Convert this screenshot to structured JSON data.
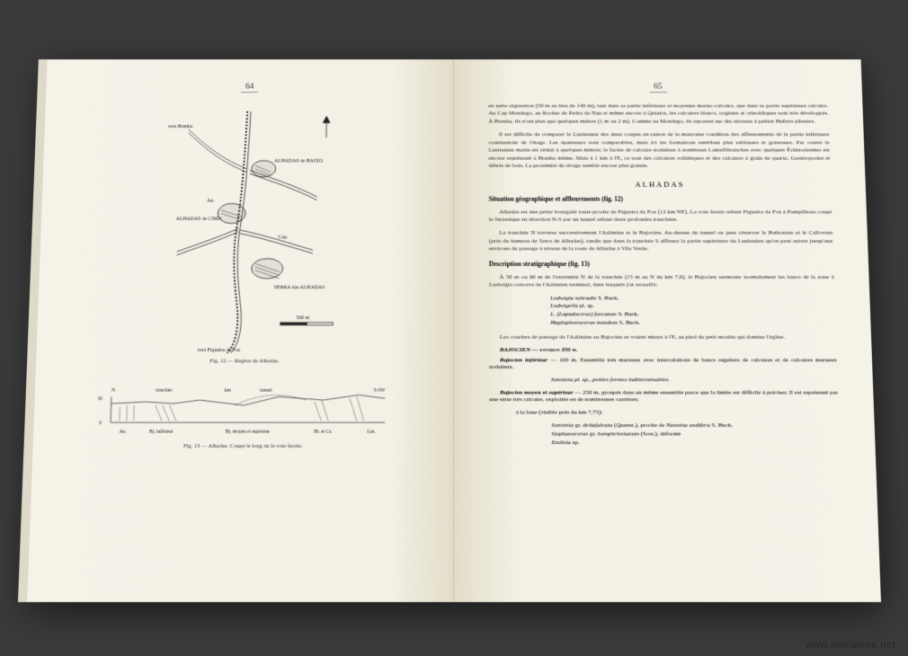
{
  "left": {
    "page_num": "64",
    "map": {
      "labels": {
        "brenha": "vers Brenha",
        "baixo": "ALHADAS de BAIXO",
        "cima": "ALHADAS de CIMA",
        "serra": "SERRA das ALHADAS",
        "figueira": "vers Figueira da Foz",
        "an": "An.",
        "cap": "Cap."
      },
      "scale": "500 m",
      "caption": "Fig. 12 — Région de Alhadas."
    },
    "section": {
      "labels": {
        "n": "N",
        "sw": "S-SW",
        "tranchee": "tranchée",
        "tunnel": "tunnel",
        "km": "km",
        "an": "An.",
        "bj_inf": "Bj. inférieur",
        "bj_moy": "Bj. moyen et supérieur",
        "bt_ca": "Bt. et Ca.",
        "lus": "Lus.",
        "v50": "50",
        "v0": "0"
      },
      "caption": "Fig. 13 — Alhadas. Coupe le long de la voie ferrée."
    }
  },
  "right": {
    "page_num": "65",
    "para1": "en nette régression (50 m au lieu de 140 m), tant dans sa partie inférieure et moyenne marno-calcaire, que dans sa partie supérieure calcaire. Au Cap Mondego, au Rocher de Pedra da Nau et même encore à Quiaios, les calcaires blancs, oogènes et crinoïdiques sont très développés. À Brenha, ils n'ont plus que quelques mètres (1 m ou 2 m). Comme au Mondego, ils reposent sur des niveaux à petites Huîtres plissées.",
    "para2": "Il est difficile de comparer le Lusitanien des deux coupes en raison de la mauvaise condition des affleurements de la partie inférieure continentale de l'étage. Les épaisseurs sont comparables, mais ici les formations semblent plus sableuses et gréseuses. Par contre le Lusitanien marin est réduit à quelques mètres; le faciès de calcaire noduleux à nombreux Lamellibranches avec quelques Échinodermes est encore représenté à Brenha même. Mais à 1 km à l'E, ce sont des calcaires oolithiques et des calcaires à grain de quartz, Gastéropodes et débris de bois. La proximité du rivage semble encore plus grande.",
    "section_title": "ALHADAS",
    "sub1": "Situation géographique et affleurements (fig. 12)",
    "para3": "Alhadas est une petite bourgade toute proche de Figueira da Foz (12 km NE). La voie ferrée reliant Figueira da Foz à Pampilhosa coupe le Jurassique en direction N-S par un tunnel reliant deux profondes tranchées.",
    "para4": "La tranchée N traverse successivement l'Aalénien et le Bajocien. Au-dessus du tunnel on peut observer le Bathonien et le Callovien (près du hameau de Serra de Alhadas), tandis que dans la tranchée S affleure la partie supérieure du Lusitanien qu'on peut suivre jusqu'aux environs du passage à niveau de la route de Alhadas à Vila Verde.",
    "sub2": "Description stratigraphique (fig. 13)",
    "para5": "À 50 m ou 60 m de l'extrémité N de la tranchée (15 m au N du km 7,9), le Bajocien surmonte normalement les bancs de la zone à Ludwigia concava de l'Aalénien terminal, dans lesquels j'ai recueilli:",
    "species1": [
      "Ludwigia subradix <span class=\"auth\">S. Buck.</span>",
      "Ludwigella <span class=\"auth\">pl. sp.</span>",
      "L. (Lopadoceras) furcatum <span class=\"auth\">S. Buck.</span>",
      "Haplopleuroceras mundum <span class=\"auth\">S. Buck.</span>"
    ],
    "para6": "Les couches de passage de l'Aalénien au Bajocien se voient mieux à l'E, au pied du petit moulin qui domine l'église.",
    "baj_head": "BAJOCIEN — environ 350 m.",
    "baj_inf": "Bajocien inférieur — 100 m. Ensemble très marneux avec intercalations de bancs réguliers de calcaires et de calcaires marneux noduleux.",
    "baj_inf_sp": "Sonninia pl. sp., petites formes indéterminables.",
    "baj_moy": "Bajocien moyen et supérieur — 250 m, groupés dans un même ensemble parce que la limite est difficile à préciser. Il est représenté par une série très calcaire, exploitée en de nombreuses carrières;",
    "baj_base": "à la base (visible près du km 7,75):",
    "species2": [
      "Sonninia <span class=\"auth\">gr.</span> deltafalcata <span class=\"auth\">(Quenst.), proche de</span> Nannina undifera <span class=\"auth\">S. Buck.</span>",
      "Stephanoceras <span class=\"auth\">gr.</span> humphriesianum <span class=\"auth\">(Sow.), déformé</span>",
      "Emileia <span class=\"auth\">sp.</span>"
    ]
  },
  "watermark": "www.delcampe.net",
  "colors": {
    "paper": "#f5f2e8",
    "ink": "#2a2a2a",
    "stroke": "#222222"
  }
}
